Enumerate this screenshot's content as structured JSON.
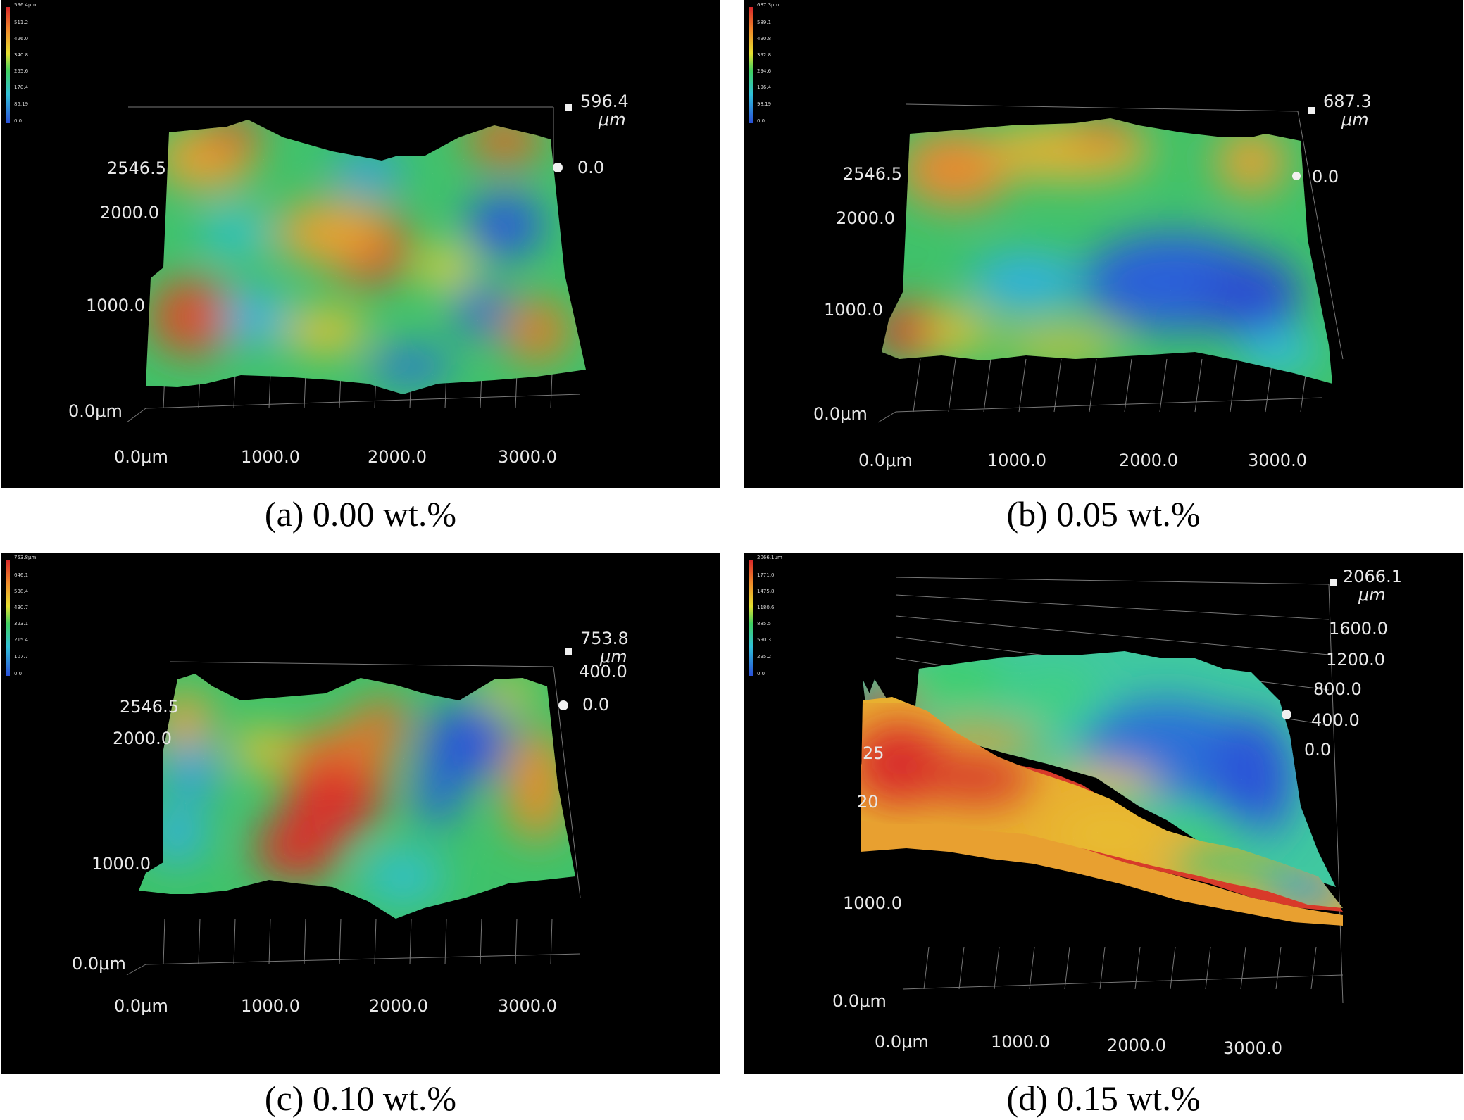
{
  "figure": {
    "panels": [
      {
        "caption": "(a) 0.00 wt.%",
        "colorbar": {
          "max_label": "596.4μm",
          "ticks": [
            "511.2",
            "426.0",
            "340.8",
            "255.6",
            "170.4",
            "85.19",
            "0.0"
          ]
        },
        "z_axis": {
          "max": "596.4",
          "unit": "μm",
          "ticks": [
            "0.0"
          ]
        },
        "y_axis": {
          "ticks": [
            "2546.5",
            "2000.0",
            "1000.0",
            "0.0μm"
          ]
        },
        "x_axis": {
          "ticks": [
            "0.0μm",
            "1000.0",
            "2000.0",
            "3000.0"
          ]
        }
      },
      {
        "caption": "(b) 0.05 wt.%",
        "colorbar": {
          "max_label": "687.3μm",
          "ticks": [
            "589.1",
            "490.8",
            "392.8",
            "294.6",
            "196.4",
            "98.19",
            "0.0"
          ]
        },
        "z_axis": {
          "max": "687.3",
          "unit": "μm",
          "ticks": [
            "0.0"
          ]
        },
        "y_axis": {
          "ticks": [
            "2546.5",
            "2000.0",
            "1000.0",
            "0.0μm"
          ]
        },
        "x_axis": {
          "ticks": [
            "0.0μm",
            "1000.0",
            "2000.0",
            "3000.0"
          ]
        }
      },
      {
        "caption": "(c) 0.10 wt.%",
        "colorbar": {
          "max_label": "753.8μm",
          "ticks": [
            "646.1",
            "538.4",
            "430.7",
            "323.1",
            "215.4",
            "107.7",
            "0.0"
          ]
        },
        "z_axis": {
          "max": "753.8",
          "unit": "μm",
          "ticks": [
            "400.0",
            "0.0"
          ]
        },
        "y_axis": {
          "ticks": [
            "2546.5",
            "2000.0",
            "1000.0",
            "0.0μm"
          ]
        },
        "x_axis": {
          "ticks": [
            "0.0μm",
            "1000.0",
            "2000.0",
            "3000.0"
          ]
        }
      },
      {
        "caption": "(d) 0.15 wt.%",
        "colorbar": {
          "max_label": "2066.1μm",
          "ticks": [
            "1771.0",
            "1475.8",
            "1180.6",
            "885.5",
            "590.3",
            "295.2",
            "0.0"
          ]
        },
        "z_axis": {
          "max": "2066.1",
          "unit": "μm",
          "ticks": [
            "1600.0",
            "1200.0",
            "800.0",
            "400.0",
            "0.0"
          ]
        },
        "y_axis": {
          "ticks": [
            "25",
            "20",
            "1000.0",
            "0.0μm"
          ]
        },
        "x_axis": {
          "ticks": [
            "0.0μm",
            "1000.0",
            "2000.0",
            "3000.0"
          ]
        }
      }
    ]
  }
}
